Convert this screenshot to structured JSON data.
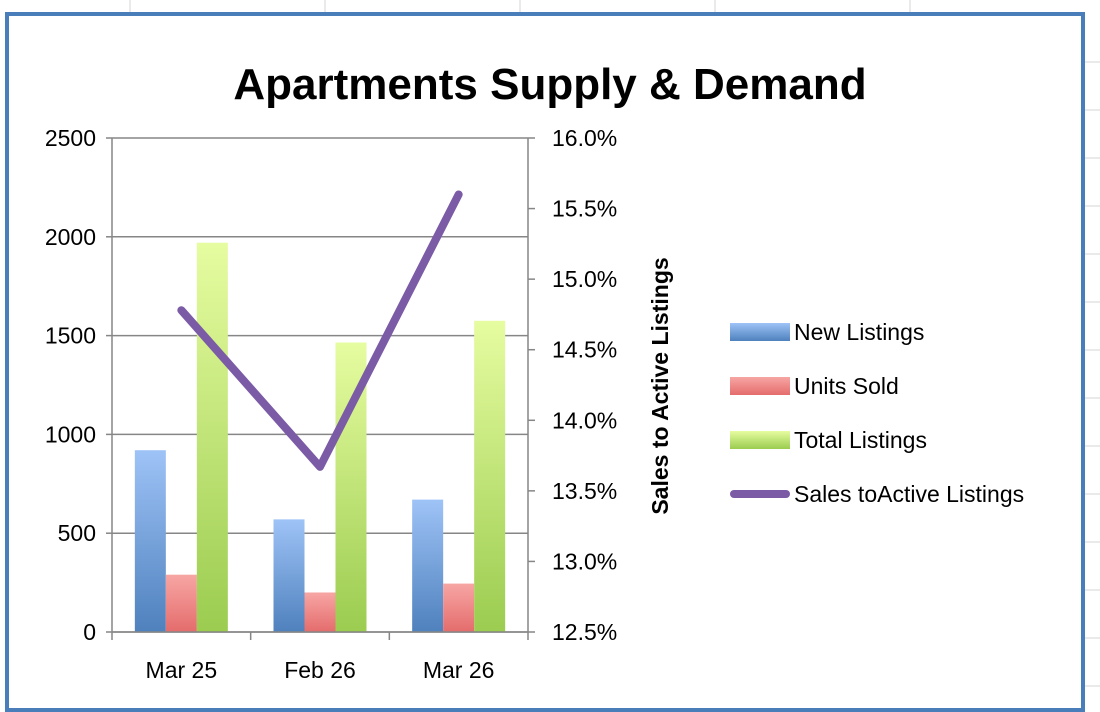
{
  "chart_data": {
    "type": "bar",
    "title": "Apartments Supply & Demand",
    "categories": [
      "Mar 25",
      "Feb 26",
      "Mar 26"
    ],
    "series": [
      {
        "name": "New Listings",
        "type": "bar",
        "axis": "left",
        "color": "#4f81bd",
        "values": [
          920,
          570,
          670
        ]
      },
      {
        "name": "Units Sold",
        "type": "bar",
        "axis": "left",
        "color": "#e46c6c",
        "values": [
          290,
          200,
          245
        ]
      },
      {
        "name": "Total Listings",
        "type": "bar",
        "axis": "left",
        "color": "#9bcc50",
        "values": [
          1970,
          1465,
          1575
        ]
      },
      {
        "name": "Sales toActive Listings",
        "type": "line",
        "axis": "right",
        "color": "#7b5aa6",
        "values": [
          0.1478,
          0.1367,
          0.156
        ]
      }
    ],
    "y_left": {
      "min": 0,
      "max": 2500,
      "ticks": [
        "0",
        "500",
        "1000",
        "1500",
        "2000",
        "2500"
      ]
    },
    "y_right": {
      "min": 0.125,
      "max": 0.16,
      "label": "Sales to Active Listings",
      "ticks": [
        "12.5%",
        "13.0%",
        "13.5%",
        "14.0%",
        "14.5%",
        "15.0%",
        "15.5%",
        "16.0%"
      ]
    },
    "grid": true,
    "legend_position": "right"
  }
}
